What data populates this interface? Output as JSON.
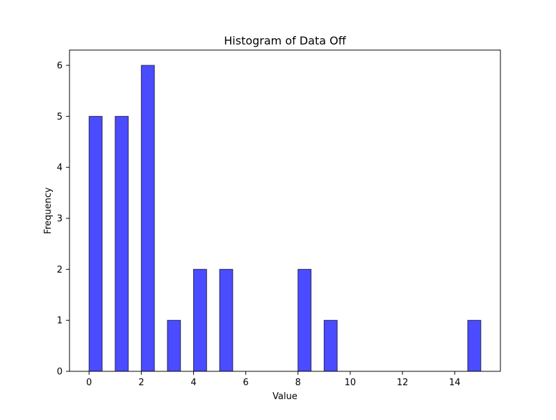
{
  "chart_data": {
    "type": "bar",
    "title": "Histogram of Data Off",
    "xlabel": "Value",
    "ylabel": "Frequency",
    "xlim": [
      -0.75,
      15.75
    ],
    "ylim": [
      0,
      6.3
    ],
    "x_ticks": [
      0,
      2,
      4,
      6,
      8,
      10,
      12,
      14
    ],
    "y_ticks": [
      0,
      1,
      2,
      3,
      4,
      5,
      6
    ],
    "bins": [
      {
        "start": 0.0,
        "end": 0.5,
        "count": 5
      },
      {
        "start": 1.0,
        "end": 1.5,
        "count": 5
      },
      {
        "start": 2.0,
        "end": 2.5,
        "count": 6
      },
      {
        "start": 3.0,
        "end": 3.5,
        "count": 1
      },
      {
        "start": 4.0,
        "end": 4.5,
        "count": 2
      },
      {
        "start": 5.0,
        "end": 5.5,
        "count": 2
      },
      {
        "start": 8.0,
        "end": 8.5,
        "count": 2
      },
      {
        "start": 9.0,
        "end": 9.5,
        "count": 1
      },
      {
        "start": 14.5,
        "end": 15.0,
        "count": 1
      }
    ],
    "bar_color": "#4b4bff",
    "edge_color": "#2a2a55",
    "grid": false
  }
}
